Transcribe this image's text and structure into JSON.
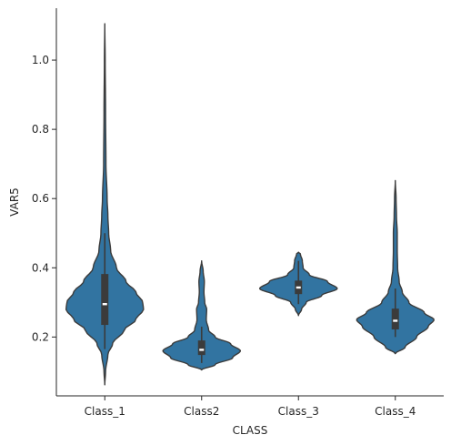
{
  "chart_data": {
    "type": "violin",
    "xlabel": "CLASS",
    "ylabel": "VAR5",
    "categories": [
      "Class_1",
      "Class2",
      "Class_3",
      "Class_4"
    ],
    "ylim": [
      0.03,
      1.15
    ],
    "yticks": [
      0.2,
      0.4,
      0.6,
      0.8,
      1.0
    ],
    "ytick_labels": [
      "0.2",
      "0.4",
      "0.6",
      "0.8",
      "1.0"
    ],
    "grid": false,
    "colors": {
      "fill": "#3274a1",
      "edge": "#3b3b3b",
      "box": "#3b3b3b",
      "median": "#ffffff"
    },
    "violins": [
      {
        "category": "Class_1",
        "min": 0.062,
        "max": 1.105,
        "q1": 0.235,
        "median": 0.295,
        "q3": 0.382,
        "whisker_low": 0.165,
        "whisker_high": 0.5,
        "profile": [
          [
            0.062,
            0.0
          ],
          [
            0.1,
            0.02
          ],
          [
            0.15,
            0.08
          ],
          [
            0.18,
            0.2
          ],
          [
            0.22,
            0.5
          ],
          [
            0.25,
            0.8
          ],
          [
            0.28,
            1.0
          ],
          [
            0.3,
            0.98
          ],
          [
            0.33,
            0.8
          ],
          [
            0.36,
            0.55
          ],
          [
            0.4,
            0.3
          ],
          [
            0.45,
            0.15
          ],
          [
            0.5,
            0.1
          ],
          [
            0.55,
            0.08
          ],
          [
            0.6,
            0.06
          ],
          [
            0.7,
            0.03
          ],
          [
            0.85,
            0.02
          ],
          [
            1.0,
            0.01
          ],
          [
            1.105,
            0.0
          ]
        ]
      },
      {
        "category": "Class2",
        "min": 0.105,
        "max": 0.42,
        "q1": 0.148,
        "median": 0.163,
        "q3": 0.19,
        "whisker_low": 0.125,
        "whisker_high": 0.23,
        "profile": [
          [
            0.105,
            0.0
          ],
          [
            0.12,
            0.35
          ],
          [
            0.14,
            0.8
          ],
          [
            0.16,
            1.0
          ],
          [
            0.18,
            0.75
          ],
          [
            0.2,
            0.35
          ],
          [
            0.22,
            0.18
          ],
          [
            0.25,
            0.12
          ],
          [
            0.28,
            0.13
          ],
          [
            0.3,
            0.08
          ],
          [
            0.33,
            0.06
          ],
          [
            0.36,
            0.07
          ],
          [
            0.39,
            0.04
          ],
          [
            0.42,
            0.0
          ]
        ]
      },
      {
        "category": "Class_3",
        "min": 0.262,
        "max": 0.445,
        "q1": 0.324,
        "median": 0.343,
        "q3": 0.363,
        "whisker_low": 0.295,
        "whisker_high": 0.42,
        "profile": [
          [
            0.262,
            0.0
          ],
          [
            0.28,
            0.08
          ],
          [
            0.3,
            0.2
          ],
          [
            0.32,
            0.6
          ],
          [
            0.34,
            1.0
          ],
          [
            0.36,
            0.75
          ],
          [
            0.38,
            0.28
          ],
          [
            0.4,
            0.12
          ],
          [
            0.42,
            0.1
          ],
          [
            0.44,
            0.05
          ],
          [
            0.445,
            0.0
          ]
        ]
      },
      {
        "category": "Class_4",
        "min": 0.152,
        "max": 0.652,
        "q1": 0.222,
        "median": 0.247,
        "q3": 0.282,
        "whisker_low": 0.2,
        "whisker_high": 0.34,
        "profile": [
          [
            0.152,
            0.0
          ],
          [
            0.17,
            0.25
          ],
          [
            0.2,
            0.55
          ],
          [
            0.23,
            0.85
          ],
          [
            0.25,
            1.0
          ],
          [
            0.27,
            0.75
          ],
          [
            0.3,
            0.35
          ],
          [
            0.33,
            0.18
          ],
          [
            0.36,
            0.1
          ],
          [
            0.4,
            0.06
          ],
          [
            0.45,
            0.05
          ],
          [
            0.5,
            0.05
          ],
          [
            0.55,
            0.03
          ],
          [
            0.6,
            0.02
          ],
          [
            0.652,
            0.0
          ]
        ]
      }
    ]
  }
}
